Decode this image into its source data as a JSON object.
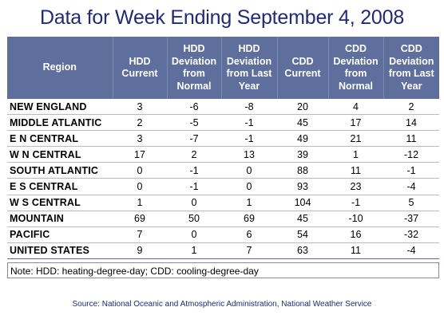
{
  "title": "Data for Week Ending September 4, 2008",
  "table": {
    "headers": [
      "Region",
      "HDD Current",
      "HDD Deviation from Normal",
      "HDD Deviation from Last Year",
      "CDD Current",
      "CDD Deviation from Normal",
      "CDD Deviation from Last Year"
    ],
    "rows": [
      [
        "NEW ENGLAND",
        "3",
        "-6",
        "-8",
        "20",
        "4",
        "2"
      ],
      [
        "MIDDLE ATLANTIC",
        "2",
        "-5",
        "-1",
        "45",
        "17",
        "14"
      ],
      [
        "E N CENTRAL",
        "3",
        "-7",
        "-1",
        "49",
        "21",
        "11"
      ],
      [
        "W N CENTRAL",
        "17",
        "2",
        "13",
        "39",
        "1",
        "-12"
      ],
      [
        "SOUTH ATLANTIC",
        "0",
        "-1",
        "0",
        "88",
        "11",
        "-1"
      ],
      [
        "E S CENTRAL",
        "0",
        "-1",
        "0",
        "93",
        "23",
        "-4"
      ],
      [
        "W S CENTRAL",
        "1",
        "0",
        "1",
        "104",
        "-1",
        "5"
      ],
      [
        "MOUNTAIN",
        "69",
        "50",
        "69",
        "45",
        "-10",
        "-37"
      ],
      [
        "PACIFIC",
        "7",
        "0",
        "6",
        "54",
        "16",
        "-32"
      ],
      [
        "UNITED STATES",
        "9",
        "1",
        "7",
        "63",
        "11",
        "-4"
      ]
    ]
  },
  "note": "Note: HDD: heating-degree-day; CDD: cooling-degree-day",
  "source": "Source:  National Oceanic and Atmospheric Administration, National Weather Service",
  "colors": {
    "header_bg": "#5e6f9e",
    "title_text": "#1e2a7a"
  }
}
